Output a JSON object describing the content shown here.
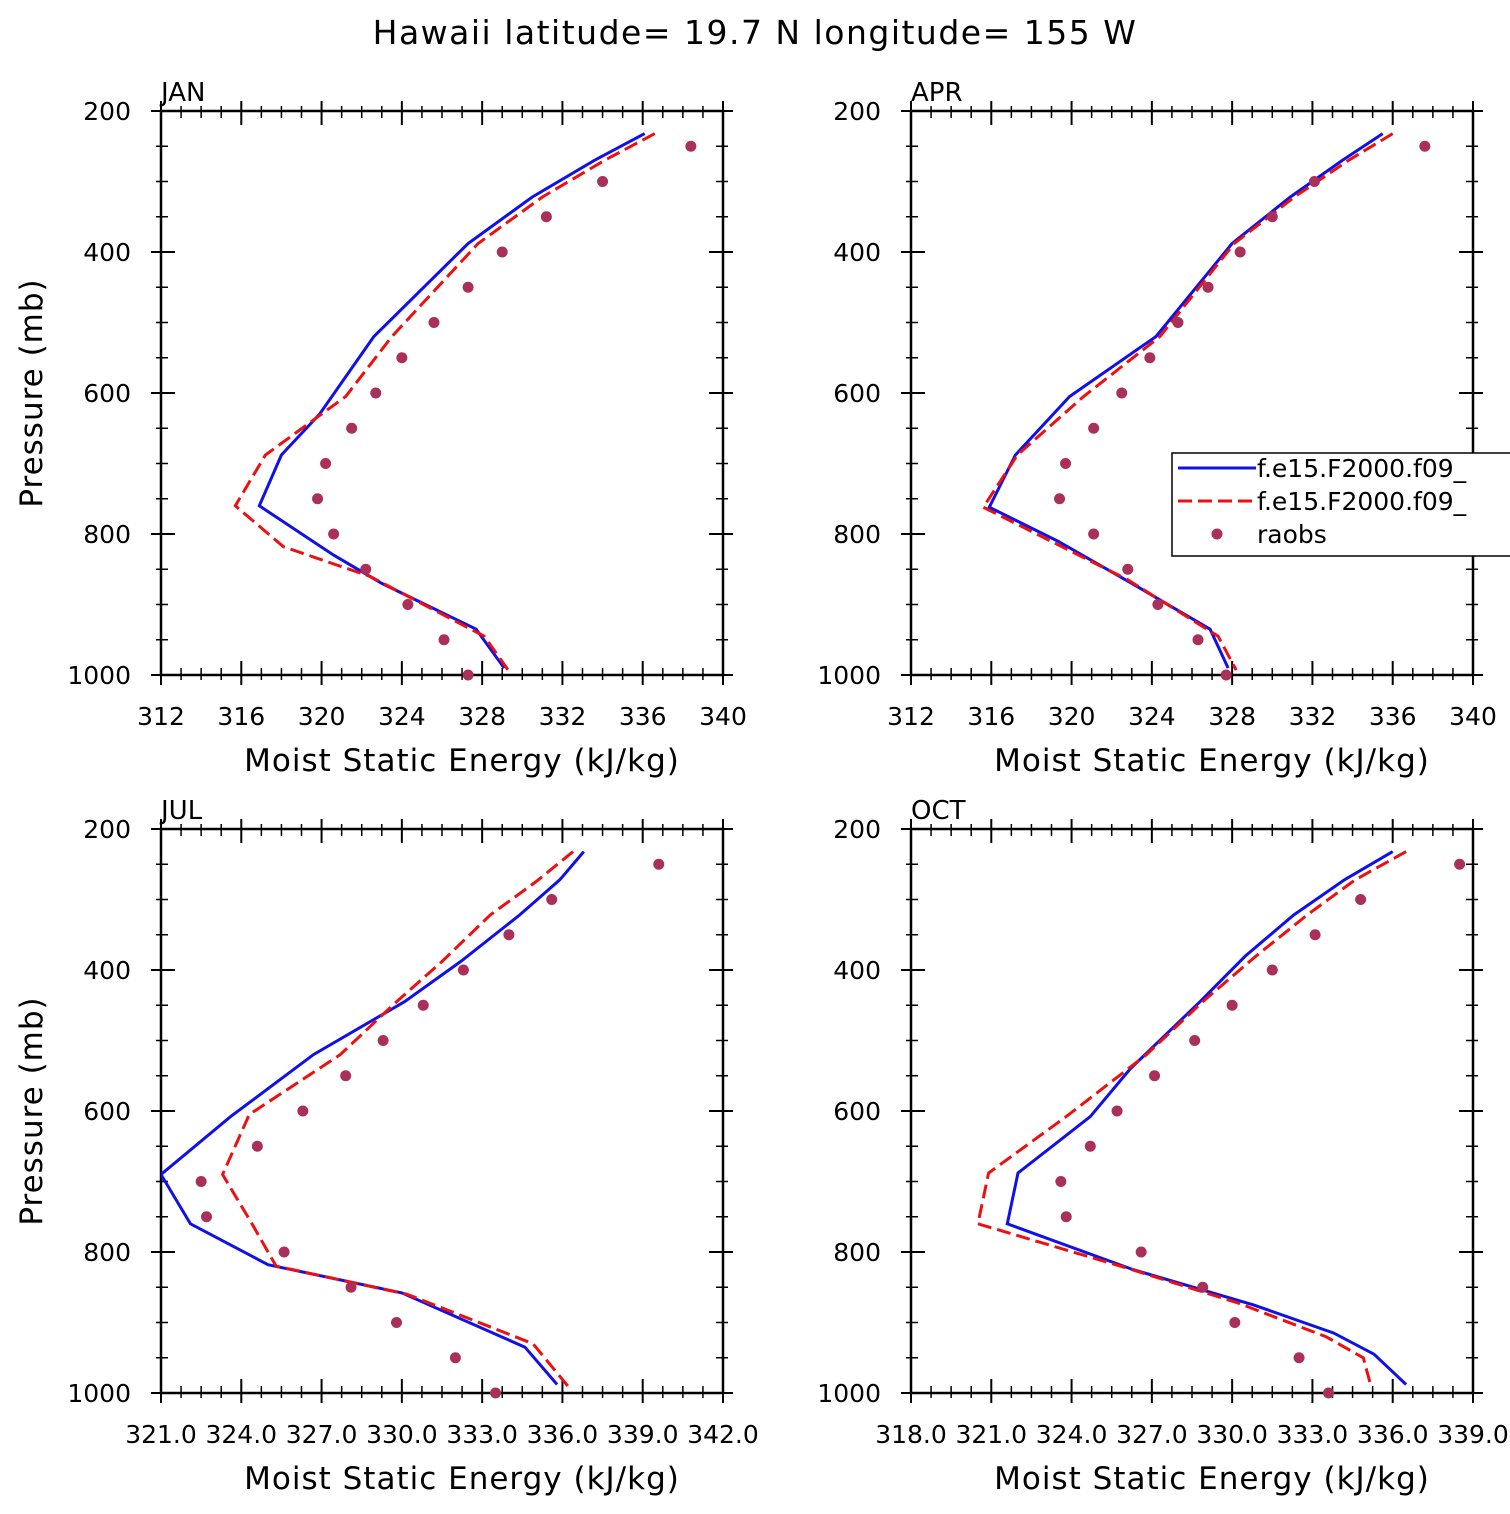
{
  "title": "Hawaii  latitude= 19.7 N longitude= 155 W",
  "colors": {
    "model1": "#1010e8",
    "model2": "#ee1010",
    "raobs": "#a8305a"
  },
  "chart_data": [
    {
      "type": "line",
      "month": "JAN",
      "xlabel": "Moist Static Energy (kJ/kg)",
      "ylabel": "Pressure (mb)",
      "xlim": [
        312,
        340
      ],
      "ylim": [
        200,
        1000
      ],
      "y_inverted": true,
      "xticks": [
        "312",
        "316",
        "320",
        "324",
        "328",
        "332",
        "336",
        "340"
      ],
      "yticks": [
        "200",
        "400",
        "600",
        "800",
        "1000"
      ],
      "series": [
        {
          "style": "solid",
          "color": "#1010e8",
          "x": [
            336.1,
            333.6,
            330.5,
            327.3,
            322.6,
            319.9,
            318.0,
            316.9,
            320.6,
            323.0,
            327.7,
            329.1
          ],
          "y": [
            232,
            270,
            322,
            388,
            520,
            630,
            688,
            760,
            830,
            870,
            935,
            990
          ]
        },
        {
          "style": "dashed",
          "color": "#ee1010",
          "x": [
            336.6,
            334.1,
            331.0,
            327.8,
            323.5,
            321.2,
            317.2,
            315.7,
            318.1,
            322.4,
            328.1,
            329.3
          ],
          "y": [
            232,
            270,
            322,
            388,
            520,
            605,
            688,
            760,
            818,
            860,
            945,
            993
          ]
        },
        {
          "style": "markers",
          "color": "#a8305a",
          "name": "raobs",
          "x": [
            338.4,
            334.0,
            331.2,
            329.0,
            327.3,
            325.6,
            324.0,
            322.7,
            321.5,
            320.2,
            319.8,
            320.6,
            322.2,
            324.3,
            326.1,
            327.3
          ],
          "y": [
            250,
            300,
            350,
            400,
            450,
            500,
            550,
            600,
            650,
            700,
            750,
            800,
            850,
            900,
            950,
            1000
          ]
        }
      ]
    },
    {
      "type": "line",
      "month": "APR",
      "xlabel": "Moist Static Energy (kJ/kg)",
      "ylabel": "",
      "xlim": [
        312,
        340
      ],
      "ylim": [
        200,
        1000
      ],
      "y_inverted": true,
      "xticks": [
        "312",
        "316",
        "320",
        "324",
        "328",
        "332",
        "336",
        "340"
      ],
      "yticks": [
        "200",
        "400",
        "600",
        "800",
        "1000"
      ],
      "legend": [
        "f.e15.F2000.f09_",
        "f.e15.F2000.f09_",
        "raobs"
      ],
      "legend_position": "right",
      "series": [
        {
          "style": "solid",
          "color": "#1010e8",
          "name": "f.e15.F2000.f09_",
          "x": [
            335.5,
            333.5,
            330.9,
            328.0,
            324.2,
            319.9,
            317.2,
            315.9,
            319.3,
            323.0,
            326.9,
            327.8
          ],
          "y": [
            232,
            270,
            322,
            388,
            520,
            605,
            688,
            762,
            810,
            870,
            935,
            990
          ]
        },
        {
          "style": "dashed",
          "color": "#ee1010",
          "name": "f.e15.F2000.f09_",
          "x": [
            336.0,
            333.8,
            331.1,
            328.1,
            324.4,
            320.6,
            317.3,
            315.6,
            319.1,
            322.8,
            327.3,
            328.2
          ],
          "y": [
            232,
            270,
            322,
            388,
            520,
            605,
            688,
            762,
            812,
            865,
            945,
            993
          ]
        },
        {
          "style": "markers",
          "color": "#a8305a",
          "name": "raobs",
          "x": [
            337.6,
            332.1,
            330.0,
            328.4,
            326.8,
            325.3,
            323.9,
            322.5,
            321.1,
            319.7,
            319.4,
            321.1,
            322.8,
            324.3,
            326.3,
            327.7
          ],
          "y": [
            250,
            300,
            350,
            400,
            450,
            500,
            550,
            600,
            650,
            700,
            750,
            800,
            850,
            900,
            950,
            1000
          ]
        }
      ]
    },
    {
      "type": "line",
      "month": "JUL",
      "xlabel": "Moist Static Energy (kJ/kg)",
      "ylabel": "Pressure (mb)",
      "xlim": [
        321.0,
        342.0
      ],
      "ylim": [
        200,
        1000
      ],
      "y_inverted": true,
      "xticks": [
        "321.0",
        "324.0",
        "327.0",
        "330.0",
        "333.0",
        "336.0",
        "339.0",
        "342.0"
      ],
      "yticks": [
        "200",
        "400",
        "600",
        "800",
        "1000"
      ],
      "series": [
        {
          "style": "solid",
          "color": "#1010e8",
          "x": [
            336.8,
            335.9,
            334.4,
            332.2,
            330.1,
            326.7,
            323.6,
            321.0,
            322.1,
            325.0,
            330.0,
            334.6,
            335.8
          ],
          "y": [
            232,
            272,
            322,
            388,
            445,
            520,
            608,
            690,
            760,
            818,
            858,
            935,
            988
          ]
        },
        {
          "style": "dashed",
          "color": "#ee1010",
          "x": [
            336.4,
            335.0,
            333.3,
            331.5,
            329.8,
            327.7,
            324.3,
            323.3,
            324.4,
            325.3,
            330.2,
            334.9,
            336.2
          ],
          "y": [
            232,
            275,
            322,
            388,
            445,
            520,
            605,
            690,
            760,
            820,
            860,
            930,
            990
          ]
        },
        {
          "style": "markers",
          "color": "#a8305a",
          "name": "raobs",
          "x": [
            339.6,
            335.6,
            334.0,
            332.3,
            330.8,
            329.3,
            327.9,
            326.3,
            324.6,
            322.5,
            322.7,
            325.6,
            328.1,
            329.8,
            332.0,
            333.5
          ],
          "y": [
            250,
            300,
            350,
            400,
            450,
            500,
            550,
            600,
            650,
            700,
            750,
            800,
            850,
            900,
            950,
            1000
          ]
        }
      ]
    },
    {
      "type": "line",
      "month": "OCT",
      "xlabel": "Moist Static Energy (kJ/kg)",
      "ylabel": "",
      "xlim": [
        318.0,
        339.0
      ],
      "ylim": [
        200,
        1000
      ],
      "y_inverted": true,
      "xticks": [
        "318.0",
        "321.0",
        "324.0",
        "327.0",
        "330.0",
        "333.0",
        "336.0",
        "339.0"
      ],
      "yticks": [
        "200",
        "400",
        "600",
        "800",
        "1000"
      ],
      "series": [
        {
          "style": "solid",
          "color": "#1010e8",
          "x": [
            336.0,
            334.2,
            332.3,
            330.5,
            328.8,
            326.2,
            324.7,
            322.0,
            321.6,
            326.3,
            330.8,
            333.8,
            335.3,
            336.5
          ],
          "y": [
            232,
            272,
            322,
            380,
            445,
            540,
            608,
            688,
            760,
            825,
            875,
            915,
            945,
            988
          ]
        },
        {
          "style": "dashed",
          "color": "#ee1010",
          "x": [
            336.5,
            334.6,
            332.8,
            330.9,
            328.9,
            326.8,
            323.8,
            320.9,
            320.5,
            326.0,
            330.2,
            333.5,
            334.9,
            335.2
          ],
          "y": [
            232,
            272,
            322,
            380,
            445,
            520,
            608,
            688,
            760,
            822,
            872,
            920,
            950,
            992
          ]
        },
        {
          "style": "markers",
          "color": "#a8305a",
          "name": "raobs",
          "x": [
            338.5,
            334.8,
            333.1,
            331.5,
            330.0,
            328.6,
            327.1,
            325.7,
            324.7,
            323.6,
            323.8,
            326.6,
            328.9,
            330.1,
            332.5,
            333.6
          ],
          "y": [
            250,
            300,
            350,
            400,
            450,
            500,
            550,
            600,
            650,
            700,
            750,
            800,
            850,
            900,
            950,
            1000
          ]
        }
      ]
    }
  ]
}
